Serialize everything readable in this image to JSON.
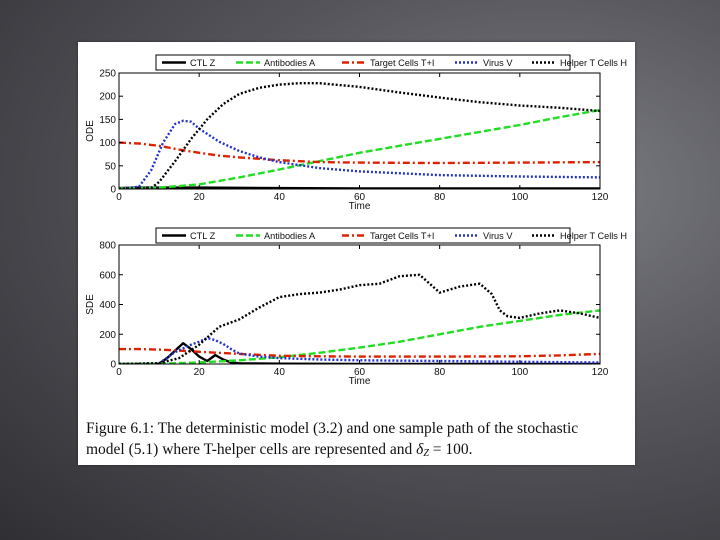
{
  "caption": {
    "line1": "Figure 6.1:  The deterministic model (3.2) and one sample path of the stochastic",
    "line2_start": "model (5.1) where T-helper cells are represented and ",
    "delta_symbol": "δ",
    "delta_subscript": "Z",
    "line2_end": " = 100."
  },
  "legend": {
    "entries": [
      {
        "label": "CTL Z",
        "color": "#000000",
        "dash": "solid"
      },
      {
        "label": "Antibodies A",
        "color": "#22dd22",
        "dash": "dashed"
      },
      {
        "label": "Target Cells T+I",
        "color": "#dd2200",
        "dash": "dashdot"
      },
      {
        "label": "Virus V",
        "color": "#2233cc",
        "dash": "dotted"
      },
      {
        "label": "Helper T Cells H",
        "color": "#000000",
        "dash": "dotted"
      }
    ]
  },
  "chart_data": [
    {
      "type": "line",
      "title": "",
      "xlabel": "Time",
      "ylabel": "ODE",
      "xlim": [
        0,
        120
      ],
      "ylim": [
        0,
        250
      ],
      "xticks": [
        0,
        20,
        40,
        60,
        80,
        100,
        120
      ],
      "yticks": [
        0,
        50,
        100,
        150,
        200,
        250
      ],
      "series": [
        {
          "name": "CTL Z",
          "color": "#000000",
          "dash": "solid",
          "x": [
            0,
            5,
            10,
            20,
            40,
            60,
            80,
            100,
            120
          ],
          "y": [
            2,
            3,
            3,
            3,
            2,
            1,
            1,
            1,
            1
          ]
        },
        {
          "name": "Antibodies A",
          "color": "#22dd22",
          "dash": "dashed",
          "x": [
            0,
            10,
            20,
            30,
            40,
            50,
            60,
            70,
            80,
            90,
            100,
            110,
            120
          ],
          "y": [
            1,
            3,
            10,
            25,
            42,
            60,
            78,
            93,
            108,
            123,
            138,
            155,
            170
          ]
        },
        {
          "name": "Target Cells T+I",
          "color": "#dd2200",
          "dash": "dashdot",
          "x": [
            0,
            5,
            10,
            15,
            20,
            25,
            30,
            40,
            50,
            60,
            80,
            100,
            120
          ],
          "y": [
            100,
            98,
            93,
            85,
            78,
            72,
            68,
            62,
            58,
            57,
            56,
            57,
            58
          ]
        },
        {
          "name": "Virus V",
          "color": "#2233cc",
          "dash": "dotted",
          "x": [
            0,
            5,
            8,
            11,
            14,
            16,
            18,
            20,
            25,
            30,
            35,
            40,
            50,
            60,
            80,
            100,
            120
          ],
          "y": [
            0,
            5,
            40,
            100,
            140,
            147,
            145,
            130,
            102,
            82,
            68,
            58,
            45,
            38,
            30,
            27,
            25
          ]
        },
        {
          "name": "Helper T Cells H",
          "color": "#000000",
          "dash": "dotted",
          "x": [
            0,
            8,
            10,
            14,
            18,
            22,
            26,
            30,
            35,
            40,
            45,
            50,
            60,
            70,
            80,
            90,
            100,
            110,
            120
          ],
          "y": [
            0,
            2,
            15,
            60,
            108,
            150,
            183,
            205,
            218,
            225,
            228,
            228,
            220,
            208,
            197,
            187,
            180,
            175,
            168
          ]
        }
      ]
    },
    {
      "type": "line",
      "title": "",
      "xlabel": "Time",
      "ylabel": "SDE",
      "xlim": [
        0,
        120
      ],
      "ylim": [
        0,
        800
      ],
      "xticks": [
        0,
        20,
        40,
        60,
        80,
        100,
        120
      ],
      "yticks": [
        0,
        200,
        400,
        600,
        800
      ],
      "series": [
        {
          "name": "CTL Z",
          "color": "#000000",
          "dash": "solid",
          "x": [
            0,
            10,
            12,
            14,
            16,
            18,
            20,
            22,
            24,
            26,
            28,
            30,
            40,
            60,
            120
          ],
          "y": [
            0,
            2,
            40,
            90,
            140,
            100,
            50,
            20,
            60,
            30,
            10,
            5,
            2,
            1,
            1
          ]
        },
        {
          "name": "Antibodies A",
          "color": "#22dd22",
          "dash": "dashed",
          "x": [
            0,
            10,
            20,
            30,
            40,
            50,
            60,
            70,
            80,
            90,
            100,
            110,
            120
          ],
          "y": [
            0,
            2,
            10,
            25,
            45,
            75,
            110,
            150,
            200,
            250,
            290,
            330,
            360
          ]
        },
        {
          "name": "Target Cells T+I",
          "color": "#dd2200",
          "dash": "dashdot",
          "x": [
            0,
            5,
            10,
            15,
            20,
            30,
            40,
            50,
            60,
            80,
            100,
            110,
            120
          ],
          "y": [
            100,
            100,
            97,
            90,
            82,
            68,
            55,
            52,
            50,
            50,
            52,
            58,
            68
          ]
        },
        {
          "name": "Virus V",
          "color": "#2233cc",
          "dash": "dotted",
          "x": [
            0,
            10,
            14,
            18,
            20,
            22,
            24,
            26,
            28,
            30,
            35,
            40,
            50,
            60,
            80,
            100,
            120
          ],
          "y": [
            0,
            5,
            80,
            130,
            150,
            175,
            160,
            135,
            100,
            70,
            50,
            40,
            30,
            25,
            20,
            15,
            10
          ]
        },
        {
          "name": "Helper T Cells H",
          "color": "#000000",
          "dash": "dotted",
          "x": [
            0,
            10,
            15,
            20,
            25,
            30,
            35,
            40,
            45,
            50,
            55,
            60,
            65,
            70,
            75,
            80,
            85,
            90,
            93,
            95,
            97,
            100,
            105,
            110,
            115,
            120
          ],
          "y": [
            0,
            5,
            40,
            130,
            250,
            300,
            380,
            450,
            470,
            480,
            500,
            530,
            540,
            590,
            600,
            480,
            520,
            540,
            470,
            360,
            320,
            310,
            340,
            360,
            340,
            310
          ]
        }
      ]
    }
  ]
}
